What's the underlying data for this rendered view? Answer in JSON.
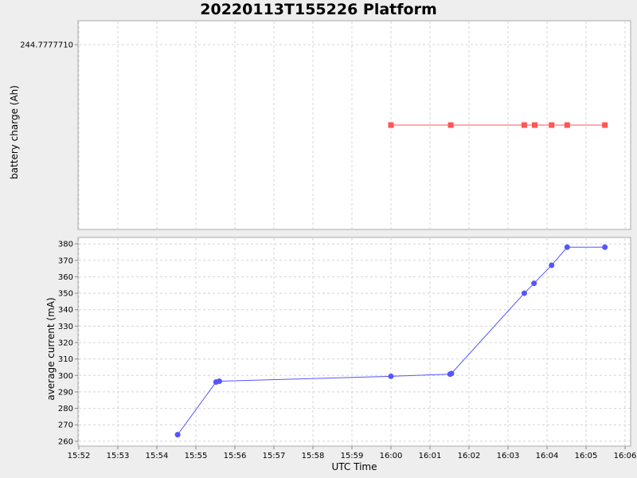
{
  "title": "20220113T155226 Platform",
  "chart_data": [
    {
      "type": "line",
      "ylabel": "battery charge (Ah)",
      "y_ticks": [
        "244.7777710"
      ],
      "marker": "square",
      "color": "#ff5555",
      "grid": true,
      "series": [
        {
          "x": [
            "16:00:00",
            "16:01:32",
            "16:03:25",
            "16:03:41",
            "16:04:07",
            "16:04:31",
            "16:05:29"
          ],
          "y": [
            244.77777,
            244.77777,
            244.77777,
            244.77777,
            244.77777,
            244.77777,
            244.77777
          ]
        }
      ]
    },
    {
      "type": "line",
      "ylabel": "average current (mA)",
      "xlabel": "UTC Time",
      "ylim": [
        258,
        382
      ],
      "y_ticks": [
        260,
        270,
        280,
        290,
        300,
        310,
        320,
        330,
        340,
        350,
        360,
        370,
        380
      ],
      "x_ticks": [
        "15:52",
        "15:53",
        "15:54",
        "15:55",
        "15:56",
        "15:57",
        "15:58",
        "15:59",
        "16:00",
        "16:01",
        "16:02",
        "16:03",
        "16:04",
        "16:05",
        "16:06"
      ],
      "xlim": [
        "15:52:00",
        "16:06:00"
      ],
      "marker": "circle",
      "color": "#5555ff",
      "grid": true,
      "series": [
        {
          "x": [
            "15:54:32",
            "15:55:31",
            "15:55:36",
            "16:00:00",
            "16:01:31",
            "16:01:33",
            "16:03:25",
            "16:03:40",
            "16:04:07",
            "16:04:31",
            "16:05:29"
          ],
          "y": [
            264,
            296,
            296.5,
            299.5,
            300.8,
            301.2,
            350,
            356,
            367,
            378,
            378
          ]
        }
      ]
    }
  ]
}
